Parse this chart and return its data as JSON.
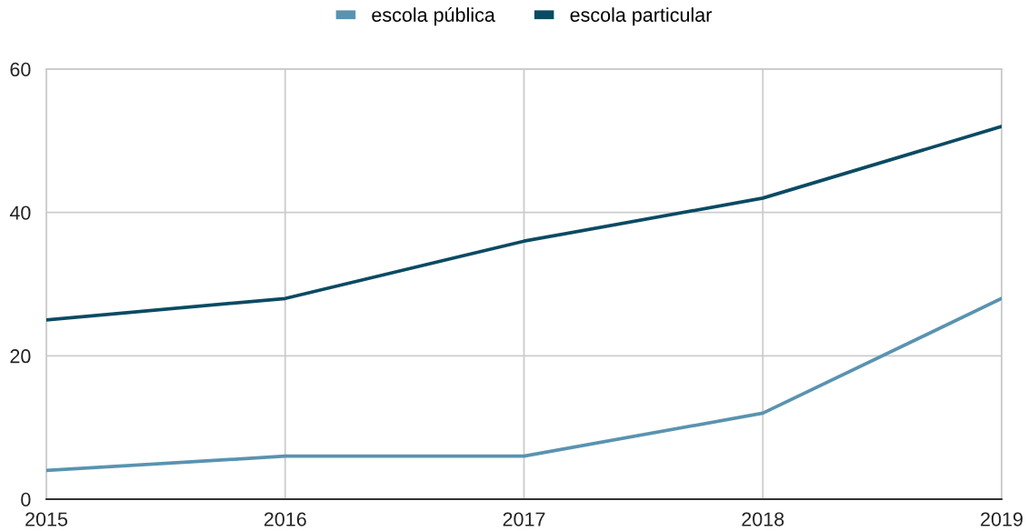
{
  "chart_data": {
    "type": "line",
    "x": [
      2015,
      2016,
      2017,
      2018,
      2019
    ],
    "series": [
      {
        "name": "escola pública",
        "color": "#5a93b0",
        "values": [
          4,
          6,
          6,
          12,
          28
        ]
      },
      {
        "name": "escola particular",
        "color": "#0b4a63",
        "values": [
          25,
          28,
          36,
          42,
          52
        ]
      }
    ],
    "xlim": [
      2015,
      2019
    ],
    "xticks": [
      2015,
      2016,
      2017,
      2018,
      2019
    ],
    "ylim": [
      0,
      60
    ],
    "yticks": [
      0,
      20,
      40,
      60
    ],
    "grid": true,
    "legend": "top",
    "line_style": "solid"
  }
}
